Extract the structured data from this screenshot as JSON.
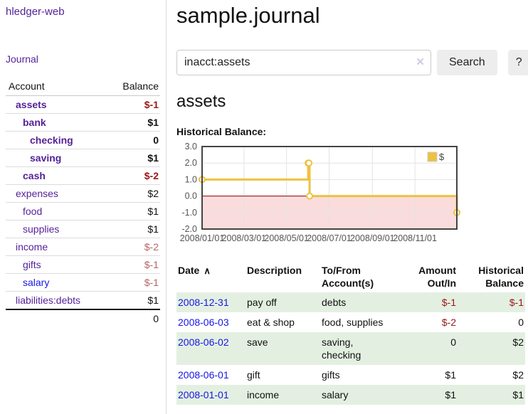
{
  "app": {
    "brand": "hledger-web",
    "nav_journal": "Journal"
  },
  "header": {
    "title": "sample.journal"
  },
  "search": {
    "value": "inacct:assets",
    "clear_icon": "✕",
    "button_label": "Search",
    "help_label": "?"
  },
  "account_page": {
    "heading": "assets",
    "chart_label": "Historical Balance:"
  },
  "sidebar": {
    "headers": {
      "account": "Account",
      "balance": "Balance"
    },
    "accounts": [
      {
        "name": "assets",
        "level": 1,
        "bold": true,
        "link_color": "purple",
        "balance": "$-1",
        "balance_style": "neg"
      },
      {
        "name": "bank",
        "level": 2,
        "bold": true,
        "link_color": "purple",
        "balance": "$1",
        "balance_style": ""
      },
      {
        "name": "checking",
        "level": 3,
        "bold": true,
        "link_color": "purple",
        "balance": "0",
        "balance_style": ""
      },
      {
        "name": "saving",
        "level": 3,
        "bold": true,
        "link_color": "purple",
        "balance": "$1",
        "balance_style": ""
      },
      {
        "name": "cash",
        "level": 2,
        "bold": true,
        "link_color": "purple",
        "balance": "$-2",
        "balance_style": "neg"
      },
      {
        "name": "expenses",
        "level": 1,
        "bold": false,
        "link_color": "purple",
        "balance": "$2",
        "balance_style": ""
      },
      {
        "name": "food",
        "level": 2,
        "bold": false,
        "link_color": "purple",
        "balance": "$1",
        "balance_style": ""
      },
      {
        "name": "supplies",
        "level": 2,
        "bold": false,
        "link_color": "purple",
        "balance": "$1",
        "balance_style": ""
      },
      {
        "name": "income",
        "level": 1,
        "bold": false,
        "link_color": "purple",
        "balance": "$-2",
        "balance_style": "neg-muted"
      },
      {
        "name": "gifts",
        "level": 2,
        "bold": false,
        "link_color": "purple",
        "balance": "$-1",
        "balance_style": "neg-muted"
      },
      {
        "name": "salary",
        "level": 2,
        "bold": false,
        "link_color": "blue",
        "balance": "$-1",
        "balance_style": "neg-muted"
      },
      {
        "name": "liabilities:debts",
        "level": 1,
        "bold": false,
        "link_color": "purple",
        "balance": "$1",
        "balance_style": ""
      }
    ],
    "total": "0"
  },
  "chart_data": {
    "type": "line",
    "title": "Historical Balance",
    "step": true,
    "series": [
      {
        "name": "$",
        "points": [
          {
            "date": "2008-01-01",
            "value": 1
          },
          {
            "date": "2008-06-01",
            "value": 2
          },
          {
            "date": "2008-06-02",
            "value": 2
          },
          {
            "date": "2008-06-03",
            "value": 0
          },
          {
            "date": "2008-12-31",
            "value": -1
          }
        ]
      }
    ],
    "x_range": [
      "2008-01-01",
      "2008-12-31"
    ],
    "ylim": [
      -2,
      3
    ],
    "yticks": [
      3,
      2,
      1,
      0,
      -1,
      -2
    ],
    "xticks": [
      "2008/01/01",
      "2008/03/01",
      "2008/05/01",
      "2008/07/01",
      "2008/09/01",
      "2008/11/01"
    ],
    "legend": {
      "label": "$",
      "position": "top-right"
    },
    "colors": {
      "line": "#edc240",
      "marker_fill": "#ffffff",
      "negative_region": "#fbdcdc",
      "zero_line": "#8b0000",
      "grid": "#e3e3e3",
      "border": "#444444",
      "tick_text": "#545454",
      "legend_text": "#444444",
      "legend_swatch_border": "#cccccc"
    }
  },
  "register": {
    "headers": [
      "Date",
      "Description",
      "To/From\nAccount(s)",
      "Amount\nOut/In",
      "Historical\nBalance"
    ],
    "sort_icon": "∧",
    "rows": [
      {
        "date": "2008-12-31",
        "description": "pay off",
        "accounts": "debts",
        "amount": "$-1",
        "amount_negative": true,
        "balance": "$-1",
        "balance_negative": true
      },
      {
        "date": "2008-06-03",
        "description": "eat & shop",
        "accounts": "food, supplies",
        "amount": "$-2",
        "amount_negative": true,
        "balance": "0",
        "balance_negative": false
      },
      {
        "date": "2008-06-02",
        "description": "save",
        "accounts": "saving, checking",
        "amount": "0",
        "amount_negative": false,
        "balance": "$2",
        "balance_negative": false
      },
      {
        "date": "2008-06-01",
        "description": "gift",
        "accounts": "gifts",
        "amount": "$1",
        "amount_negative": false,
        "balance": "$2",
        "balance_negative": false
      },
      {
        "date": "2008-01-01",
        "description": "income",
        "accounts": "salary",
        "amount": "$1",
        "amount_negative": false,
        "balance": "$1",
        "balance_negative": false
      }
    ]
  }
}
